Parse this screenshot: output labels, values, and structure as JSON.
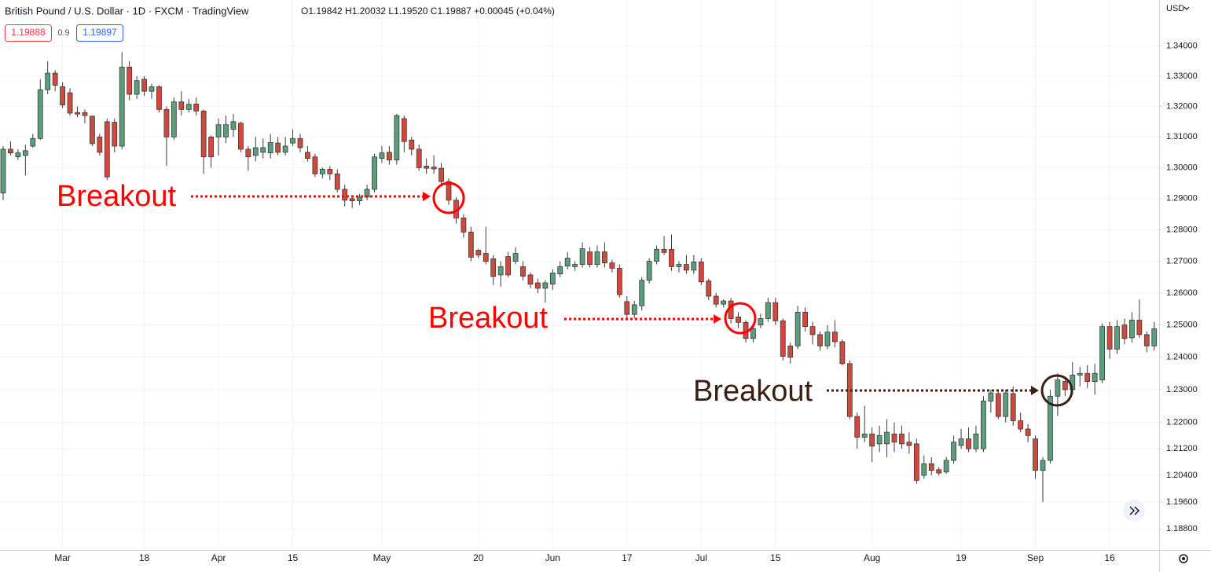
{
  "header": {
    "title": "British Pound / U.S. Dollar · 1D · FXCM · TradingView",
    "ohlc": "O1.19842 H1.20032 L1.19520 C1.19887 +0.00045 (+0.04%)",
    "sell": "1.19888",
    "spread": "0.9",
    "buy": "1.19897",
    "currency": "USD"
  },
  "chart_data": {
    "type": "candlestick",
    "log": true,
    "grid": true,
    "up_color": "#5b9e7c",
    "down_color": "#d0493c",
    "border_color": "#3a3a3a",
    "ylim": [
      1.1818,
      1.3555
    ],
    "yticks": [
      {
        "value": 1.34,
        "label": "1.34000"
      },
      {
        "value": 1.33,
        "label": "1.33000"
      },
      {
        "value": 1.32,
        "label": "1.32000"
      },
      {
        "value": 1.31,
        "label": "1.31000"
      },
      {
        "value": 1.3,
        "label": "1.30000"
      },
      {
        "value": 1.29,
        "label": "1.29000"
      },
      {
        "value": 1.28,
        "label": "1.28000"
      },
      {
        "value": 1.27,
        "label": "1.27000"
      },
      {
        "value": 1.26,
        "label": "1.26000"
      },
      {
        "value": 1.25,
        "label": "1.25000"
      },
      {
        "value": 1.24,
        "label": "1.24000"
      },
      {
        "value": 1.23,
        "label": "1.23000"
      },
      {
        "value": 1.22,
        "label": "1.22000"
      },
      {
        "value": 1.212,
        "label": "1.21200"
      },
      {
        "value": 1.204,
        "label": "1.20400"
      },
      {
        "value": 1.196,
        "label": "1.19600"
      },
      {
        "value": 1.188,
        "label": "1.18800"
      }
    ],
    "categories": [
      null,
      null,
      null,
      null,
      null,
      null,
      null,
      null,
      "Mar",
      null,
      null,
      null,
      null,
      null,
      null,
      null,
      null,
      null,
      null,
      "18",
      null,
      null,
      null,
      null,
      null,
      null,
      null,
      null,
      null,
      "Apr",
      null,
      null,
      null,
      null,
      null,
      null,
      null,
      null,
      null,
      "15",
      null,
      null,
      null,
      null,
      null,
      null,
      null,
      null,
      null,
      null,
      null,
      "May",
      null,
      null,
      null,
      null,
      null,
      null,
      null,
      null,
      null,
      null,
      null,
      null,
      "20",
      null,
      null,
      null,
      null,
      null,
      null,
      null,
      null,
      null,
      "Jun",
      null,
      null,
      null,
      null,
      null,
      null,
      null,
      null,
      null,
      "17",
      null,
      null,
      null,
      null,
      null,
      null,
      null,
      null,
      null,
      "Jul",
      null,
      null,
      null,
      null,
      null,
      null,
      null,
      null,
      null,
      "15",
      null,
      null,
      null,
      null,
      null,
      null,
      null,
      null,
      null,
      null,
      null,
      null,
      "Aug",
      null,
      null,
      null,
      null,
      null,
      null,
      null,
      null,
      null,
      null,
      null,
      "19",
      null,
      null,
      null,
      null,
      null,
      null,
      null,
      null,
      null,
      "Sep",
      null,
      null,
      null,
      null,
      null,
      null,
      null,
      null,
      null,
      "16",
      null,
      null,
      null,
      null,
      null,
      null
    ],
    "open": [
      1.2918,
      1.306,
      1.3035,
      1.304,
      1.307,
      1.3095,
      1.3255,
      1.331,
      1.3265,
      1.3245,
      1.318,
      1.318,
      1.3168,
      1.31,
      1.315,
      1.3148,
      1.307,
      1.333,
      1.324,
      1.329,
      1.325,
      1.3265,
      1.319,
      1.31,
      1.3215,
      1.319,
      1.3208,
      1.3185,
      1.31,
      1.31,
      1.31,
      1.3125,
      1.3145,
      1.306,
      1.304,
      1.305,
      1.3048,
      1.308,
      1.305,
      1.308,
      1.3095,
      1.305,
      1.3035,
      1.298,
      1.2995,
      1.298,
      1.293,
      1.29,
      1.2893,
      1.2905,
      1.293,
      1.303,
      1.305,
      1.3025,
      1.316,
      1.309,
      1.306,
      1.3005,
      1.3002,
      1.2998,
      1.2955,
      1.2895,
      1.2838,
      1.2793,
      1.2735,
      1.2725,
      1.2708,
      1.2657,
      1.2715,
      1.27,
      1.2683,
      1.2657,
      1.2632,
      1.2615,
      1.2628,
      1.266,
      1.2685,
      1.2683,
      1.269,
      1.273,
      1.269,
      1.273,
      1.2695,
      1.2678,
      1.2573,
      1.2533,
      1.256,
      1.264,
      1.27,
      1.2738,
      1.2738,
      1.2683,
      1.269,
      1.2672,
      1.2698,
      1.2638,
      1.259,
      1.2565,
      1.2575,
      1.2525,
      1.2508,
      1.2458,
      1.25,
      1.252,
      1.257,
      1.2513,
      1.2435,
      1.2435,
      1.254,
      1.2495,
      1.247,
      1.2435,
      1.2478,
      1.2448,
      1.238,
      1.2218,
      1.2155,
      1.2165,
      1.2135,
      1.2135,
      1.2165,
      1.2165,
      1.214,
      1.2135,
      1.204,
      1.2075,
      1.2057,
      1.205,
      1.2085,
      1.213,
      1.215,
      1.212,
      1.212,
      1.2265,
      1.2288,
      1.2218,
      1.2288,
      1.2205,
      1.218,
      1.215,
      1.2055,
      1.2085,
      1.228,
      1.2325,
      1.23,
      1.2345,
      1.235,
      1.2325,
      1.233,
      1.2495,
      1.2425,
      1.25,
      1.246,
      1.2515,
      1.247,
      1.2435
    ],
    "high": [
      1.307,
      1.3085,
      1.306,
      1.3075,
      1.311,
      1.329,
      1.335,
      1.332,
      1.328,
      1.326,
      1.32,
      1.319,
      1.317,
      1.311,
      1.316,
      1.316,
      1.338,
      1.335,
      1.33,
      1.33,
      1.3275,
      1.327,
      1.32,
      1.323,
      1.325,
      1.3225,
      1.323,
      1.319,
      1.3105,
      1.316,
      1.317,
      1.3175,
      1.315,
      1.307,
      1.31,
      1.3095,
      1.311,
      1.31,
      1.31,
      1.3125,
      1.311,
      1.307,
      1.3045,
      1.3,
      1.3005,
      1.2995,
      1.2945,
      1.291,
      1.2915,
      1.2945,
      1.3045,
      1.307,
      1.307,
      1.3175,
      1.317,
      1.31,
      1.3075,
      1.303,
      1.304,
      1.3015,
      1.2965,
      1.2905,
      1.285,
      1.281,
      1.274,
      1.281,
      1.272,
      1.27,
      1.273,
      1.2745,
      1.27,
      1.2665,
      1.2645,
      1.264,
      1.2675,
      1.27,
      1.273,
      1.27,
      1.276,
      1.2745,
      1.275,
      1.276,
      1.2705,
      1.269,
      1.259,
      1.2575,
      1.265,
      1.271,
      1.275,
      1.278,
      1.2785,
      1.27,
      1.272,
      1.272,
      1.271,
      1.2645,
      1.26,
      1.258,
      1.2585,
      1.254,
      1.2515,
      1.25,
      1.2535,
      1.2585,
      1.2585,
      1.252,
      1.2445,
      1.256,
      1.2555,
      1.251,
      1.248,
      1.25,
      1.2515,
      1.2455,
      1.239,
      1.223,
      1.225,
      1.2185,
      1.219,
      1.221,
      1.22,
      1.219,
      1.217,
      1.215,
      1.21,
      1.2095,
      1.2065,
      1.2095,
      1.216,
      1.218,
      1.2185,
      1.219,
      1.228,
      1.23,
      1.23,
      1.23,
      1.231,
      1.223,
      1.2195,
      1.216,
      1.2095,
      1.23,
      1.235,
      1.234,
      1.2385,
      1.237,
      1.2375,
      1.238,
      1.2505,
      1.251,
      1.2515,
      1.252,
      1.254,
      1.258,
      1.248,
      1.251
    ],
    "low": [
      1.2895,
      1.304,
      1.3025,
      1.2975,
      1.3065,
      1.309,
      1.324,
      1.325,
      1.3195,
      1.317,
      1.3165,
      1.3145,
      1.307,
      1.304,
      1.296,
      1.305,
      1.306,
      1.322,
      1.3225,
      1.3235,
      1.3225,
      1.318,
      1.3005,
      1.309,
      1.317,
      1.318,
      1.317,
      1.298,
      1.3,
      1.304,
      1.308,
      1.31,
      1.305,
      1.299,
      1.302,
      1.303,
      1.303,
      1.304,
      1.304,
      1.307,
      1.305,
      1.302,
      1.297,
      1.2965,
      1.296,
      1.292,
      1.2875,
      1.287,
      1.288,
      1.2895,
      1.292,
      1.3015,
      1.301,
      1.301,
      1.305,
      1.304,
      1.299,
      1.298,
      1.298,
      1.294,
      1.288,
      1.282,
      1.2775,
      1.27,
      1.271,
      1.269,
      1.2625,
      1.262,
      1.265,
      1.269,
      1.264,
      1.2615,
      1.26,
      1.257,
      1.261,
      1.265,
      1.2675,
      1.267,
      1.268,
      1.268,
      1.268,
      1.268,
      1.2665,
      1.2585,
      1.2515,
      1.252,
      1.2545,
      1.263,
      1.269,
      1.272,
      1.267,
      1.2665,
      1.266,
      1.266,
      1.2625,
      1.2578,
      1.2555,
      1.2555,
      1.2505,
      1.249,
      1.2445,
      1.2445,
      1.249,
      1.251,
      1.25,
      1.239,
      1.238,
      1.2425,
      1.248,
      1.244,
      1.242,
      1.2425,
      1.243,
      1.2375,
      1.221,
      1.212,
      1.214,
      1.208,
      1.211,
      1.2095,
      1.211,
      1.212,
      1.2105,
      1.2015,
      1.203,
      1.204,
      1.204,
      1.2045,
      1.2075,
      1.212,
      1.211,
      1.211,
      1.211,
      1.223,
      1.221,
      1.22,
      1.219,
      1.217,
      1.214,
      1.203,
      1.196,
      1.2075,
      1.222,
      1.228,
      1.2285,
      1.231,
      1.2305,
      1.2285,
      1.232,
      1.2395,
      1.241,
      1.244,
      1.2445,
      1.246,
      1.2415,
      1.242
    ],
    "close": [
      1.306,
      1.3048,
      1.3048,
      1.3055,
      1.3095,
      1.3255,
      1.331,
      1.327,
      1.3205,
      1.3178,
      1.3175,
      1.317,
      1.3078,
      1.305,
      1.297,
      1.307,
      1.333,
      1.324,
      1.3285,
      1.325,
      1.3265,
      1.319,
      1.31,
      1.3215,
      1.319,
      1.3207,
      1.3185,
      1.3035,
      1.3035,
      1.314,
      1.314,
      1.315,
      1.306,
      1.3035,
      1.3065,
      1.3065,
      1.3082,
      1.305,
      1.307,
      1.3095,
      1.3065,
      1.303,
      1.298,
      1.2995,
      1.298,
      1.293,
      1.2895,
      1.2893,
      1.2905,
      1.293,
      1.3035,
      1.3048,
      1.3025,
      1.317,
      1.3085,
      1.306,
      1.3,
      1.2998,
      1.2996,
      1.2955,
      1.2895,
      1.2838,
      1.2793,
      1.2713,
      1.272,
      1.27,
      1.2652,
      1.2683,
      1.2657,
      1.2725,
      1.2653,
      1.2628,
      1.2615,
      1.2632,
      1.2663,
      1.2683,
      1.271,
      1.269,
      1.274,
      1.269,
      1.273,
      1.2695,
      1.2678,
      1.2595,
      1.2533,
      1.2563,
      1.264,
      1.27,
      1.2738,
      1.2728,
      1.2683,
      1.269,
      1.2672,
      1.2698,
      1.2635,
      1.259,
      1.2565,
      1.2575,
      1.252,
      1.2508,
      1.2458,
      1.2488,
      1.252,
      1.257,
      1.2513,
      1.2403,
      1.24,
      1.254,
      1.2495,
      1.247,
      1.2435,
      1.2478,
      1.2448,
      1.238,
      1.2218,
      1.2155,
      1.2165,
      1.2128,
      1.216,
      1.217,
      1.214,
      1.2135,
      1.213,
      1.2025,
      1.2075,
      1.2055,
      1.2047,
      1.2085,
      1.214,
      1.215,
      1.212,
      1.2165,
      1.2265,
      1.229,
      1.2218,
      1.229,
      1.2205,
      1.218,
      1.216,
      1.2055,
      1.2085,
      1.228,
      1.233,
      1.23,
      1.2345,
      1.235,
      1.2325,
      1.235,
      1.2495,
      1.2425,
      1.2495,
      1.2458,
      1.2515,
      1.247,
      1.2435,
      1.2488
    ],
    "annotations": [
      {
        "text": "Breakout",
        "color": "#ff0000"
      },
      {
        "text": "Breakout",
        "color": "#ff0000"
      },
      {
        "text": "Breakout",
        "color": "#3b1e14"
      }
    ]
  }
}
